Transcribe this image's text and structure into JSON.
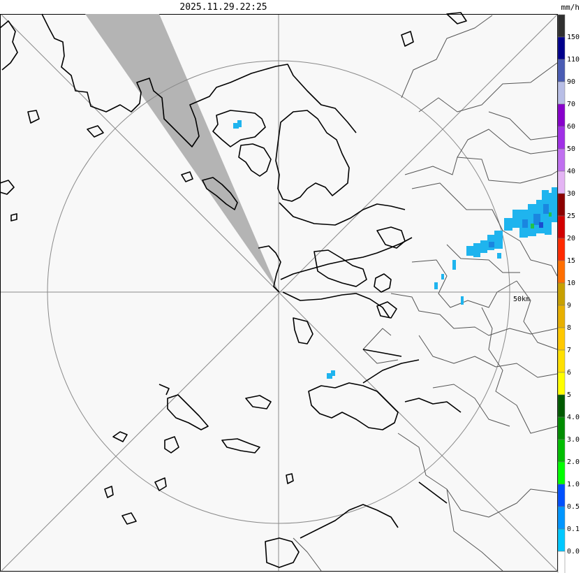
{
  "timestamp": "2025.11.29.22:25",
  "unit": "mm/h",
  "range_ring_label": "50km",
  "legend": {
    "items": [
      {
        "label": "150",
        "color": "#303030"
      },
      {
        "label": "110",
        "color": "#00008c"
      },
      {
        "label": "90",
        "color": "#4a5cb4"
      },
      {
        "label": "70",
        "color": "#b8bee6"
      },
      {
        "label": "60",
        "color": "#8800cc"
      },
      {
        "label": "50",
        "color": "#a030e6"
      },
      {
        "label": "40",
        "color": "#c070f0"
      },
      {
        "label": "30",
        "color": "#e4b4f4"
      },
      {
        "label": "25",
        "color": "#8c0000"
      },
      {
        "label": "20",
        "color": "#d20000"
      },
      {
        "label": "15",
        "color": "#ff2a00"
      },
      {
        "label": "10",
        "color": "#ff6e00"
      },
      {
        "label": "9",
        "color": "#c8a000"
      },
      {
        "label": "8",
        "color": "#e8b000"
      },
      {
        "label": "7",
        "color": "#ffc800"
      },
      {
        "label": "6",
        "color": "#ffe000"
      },
      {
        "label": "5",
        "color": "#ffff00"
      },
      {
        "label": "4.0",
        "color": "#005a00"
      },
      {
        "label": "3.0",
        "color": "#008c00"
      },
      {
        "label": "2.0",
        "color": "#00be00"
      },
      {
        "label": "1.0",
        "color": "#00ff00"
      },
      {
        "label": "0.5",
        "color": "#0050ff"
      },
      {
        "label": "0.1",
        "color": "#0096ff"
      },
      {
        "label": "0.0",
        "color": "#00c8ff"
      },
      {
        "label": "",
        "color": "#ffffff"
      }
    ]
  },
  "colors": {
    "map_background": "#f8f8f8",
    "blocked_sector": "#b4b4b4",
    "echo_light": "#1fb4ee",
    "echo_medium": "#1a86e0",
    "echo_strong": "#1a4cd0",
    "echo_green": "#22c24a"
  }
}
